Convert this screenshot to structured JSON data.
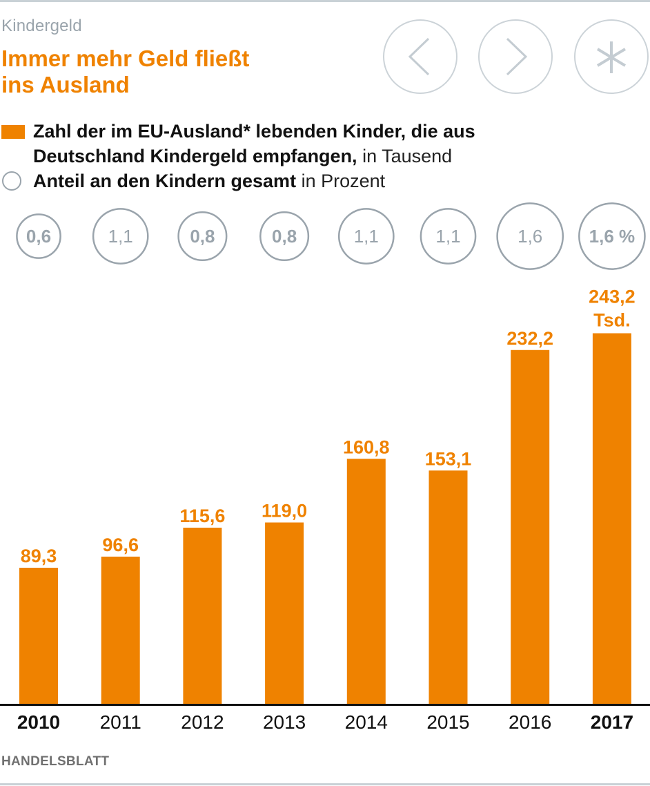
{
  "header": {
    "kicker": "Kindergeld",
    "title_line1": "Immer mehr Geld fließt",
    "title_line2": "ins Ausland"
  },
  "nav": {
    "prev_icon": "chevron-left-icon",
    "next_icon": "chevron-right-icon",
    "footnote_icon": "asterisk-icon"
  },
  "legend": {
    "bars_bold_line1": "Zahl der im EU-Ausland* lebenden Kinder, die aus",
    "bars_bold_line2": "Deutschland Kindergeld empfangen,",
    "bars_unit": " in Tausend",
    "circles_bold": "Anteil an den Kindern gesamt",
    "circles_unit": " in Prozent"
  },
  "colors": {
    "accent": "#ef8200",
    "circle": "#9aa4ac",
    "text": "#111111",
    "rule": "#c9d1d6"
  },
  "source": "HANDELSBLATT",
  "chart_data": {
    "type": "bar",
    "title": "Immer mehr Geld fließt ins Ausland",
    "xlabel": "",
    "ylabel": "in Tausend",
    "categories": [
      "2010",
      "2011",
      "2012",
      "2013",
      "2014",
      "2015",
      "2016",
      "2017"
    ],
    "bold_categories": [
      "2010",
      "2017"
    ],
    "series": [
      {
        "name": "Zahl der im EU-Ausland lebenden Kinder, die aus Deutschland Kindergeld empfangen (Tausend)",
        "values": [
          89.3,
          96.6,
          115.6,
          119.0,
          160.8,
          153.1,
          232.2,
          243.2
        ],
        "labels": [
          "89,3",
          "96,6",
          "115,6",
          "119,0",
          "160,8",
          "153,1",
          "232,2",
          "243,2"
        ],
        "last_label_suffix": "Tsd."
      },
      {
        "name": "Anteil an den Kindern gesamt (Prozent)",
        "values": [
          0.6,
          1.1,
          0.8,
          0.8,
          1.1,
          1.1,
          1.6,
          1.6
        ],
        "labels": [
          "0,6",
          "1,1",
          "0,8",
          "0,8",
          "1,1",
          "1,1",
          "1,6",
          "1,6 %"
        ]
      }
    ],
    "ylim": [
      0,
      243.2
    ],
    "grid": false,
    "legend": "top-left"
  }
}
